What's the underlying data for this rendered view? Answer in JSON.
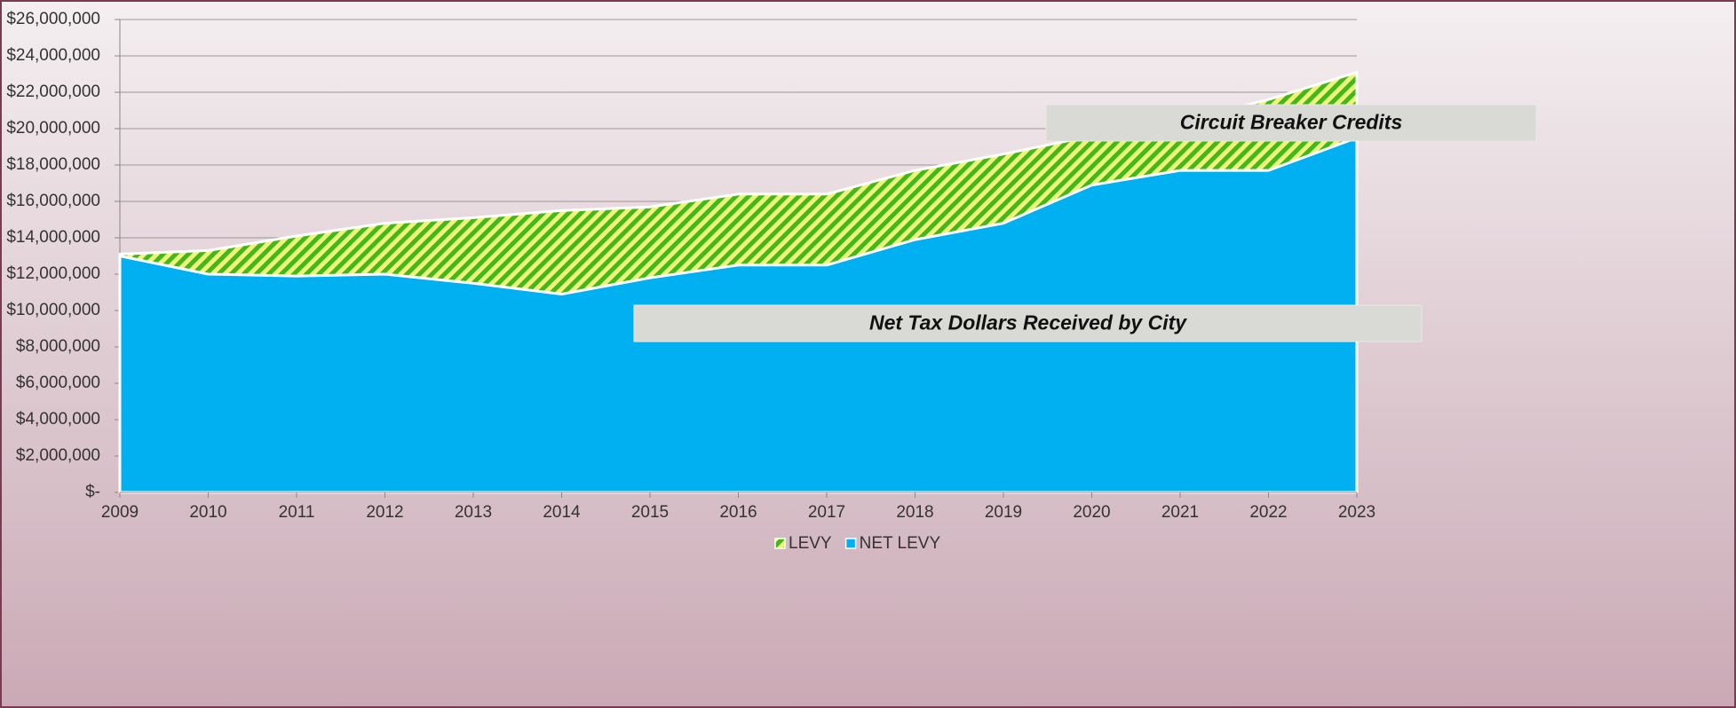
{
  "chart_data": {
    "type": "area",
    "categories": [
      "2009",
      "2010",
      "2011",
      "2012",
      "2013",
      "2014",
      "2015",
      "2016",
      "2017",
      "2018",
      "2019",
      "2020",
      "2021",
      "2022",
      "2023"
    ],
    "series": [
      {
        "name": "LEVY",
        "color": "#44b71c",
        "values": [
          13100000,
          13300000,
          14100000,
          14800000,
          15100000,
          15500000,
          15700000,
          16400000,
          16400000,
          17700000,
          18600000,
          19600000,
          20400000,
          21600000,
          23100000
        ]
      },
      {
        "name": "NET LEVY",
        "color": "#00b0f0",
        "values": [
          13000000,
          12000000,
          11900000,
          12000000,
          11500000,
          10900000,
          11800000,
          12500000,
          12500000,
          13900000,
          14800000,
          16900000,
          17700000,
          17700000,
          19500000
        ]
      }
    ],
    "ylim": [
      0,
      26000000
    ],
    "yticks": [
      {
        "value": 0,
        "label": "$-"
      },
      {
        "value": 2000000,
        "label": "$2,000,000"
      },
      {
        "value": 4000000,
        "label": "$4,000,000"
      },
      {
        "value": 6000000,
        "label": "$6,000,000"
      },
      {
        "value": 8000000,
        "label": "$8,000,000"
      },
      {
        "value": 10000000,
        "label": "$10,000,000"
      },
      {
        "value": 12000000,
        "label": "$12,000,000"
      },
      {
        "value": 14000000,
        "label": "$14,000,000"
      },
      {
        "value": 16000000,
        "label": "$16,000,000"
      },
      {
        "value": 18000000,
        "label": "$18,000,000"
      },
      {
        "value": 20000000,
        "label": "$20,000,000"
      },
      {
        "value": 22000000,
        "label": "$22,000,000"
      },
      {
        "value": 24000000,
        "label": "$24,000,000"
      },
      {
        "value": 26000000,
        "label": "$26,000,000"
      }
    ],
    "grid": true,
    "legend": "bottom",
    "annotations": [
      "Circuit Breaker Credits",
      "Net Tax Dollars Received by City"
    ]
  }
}
